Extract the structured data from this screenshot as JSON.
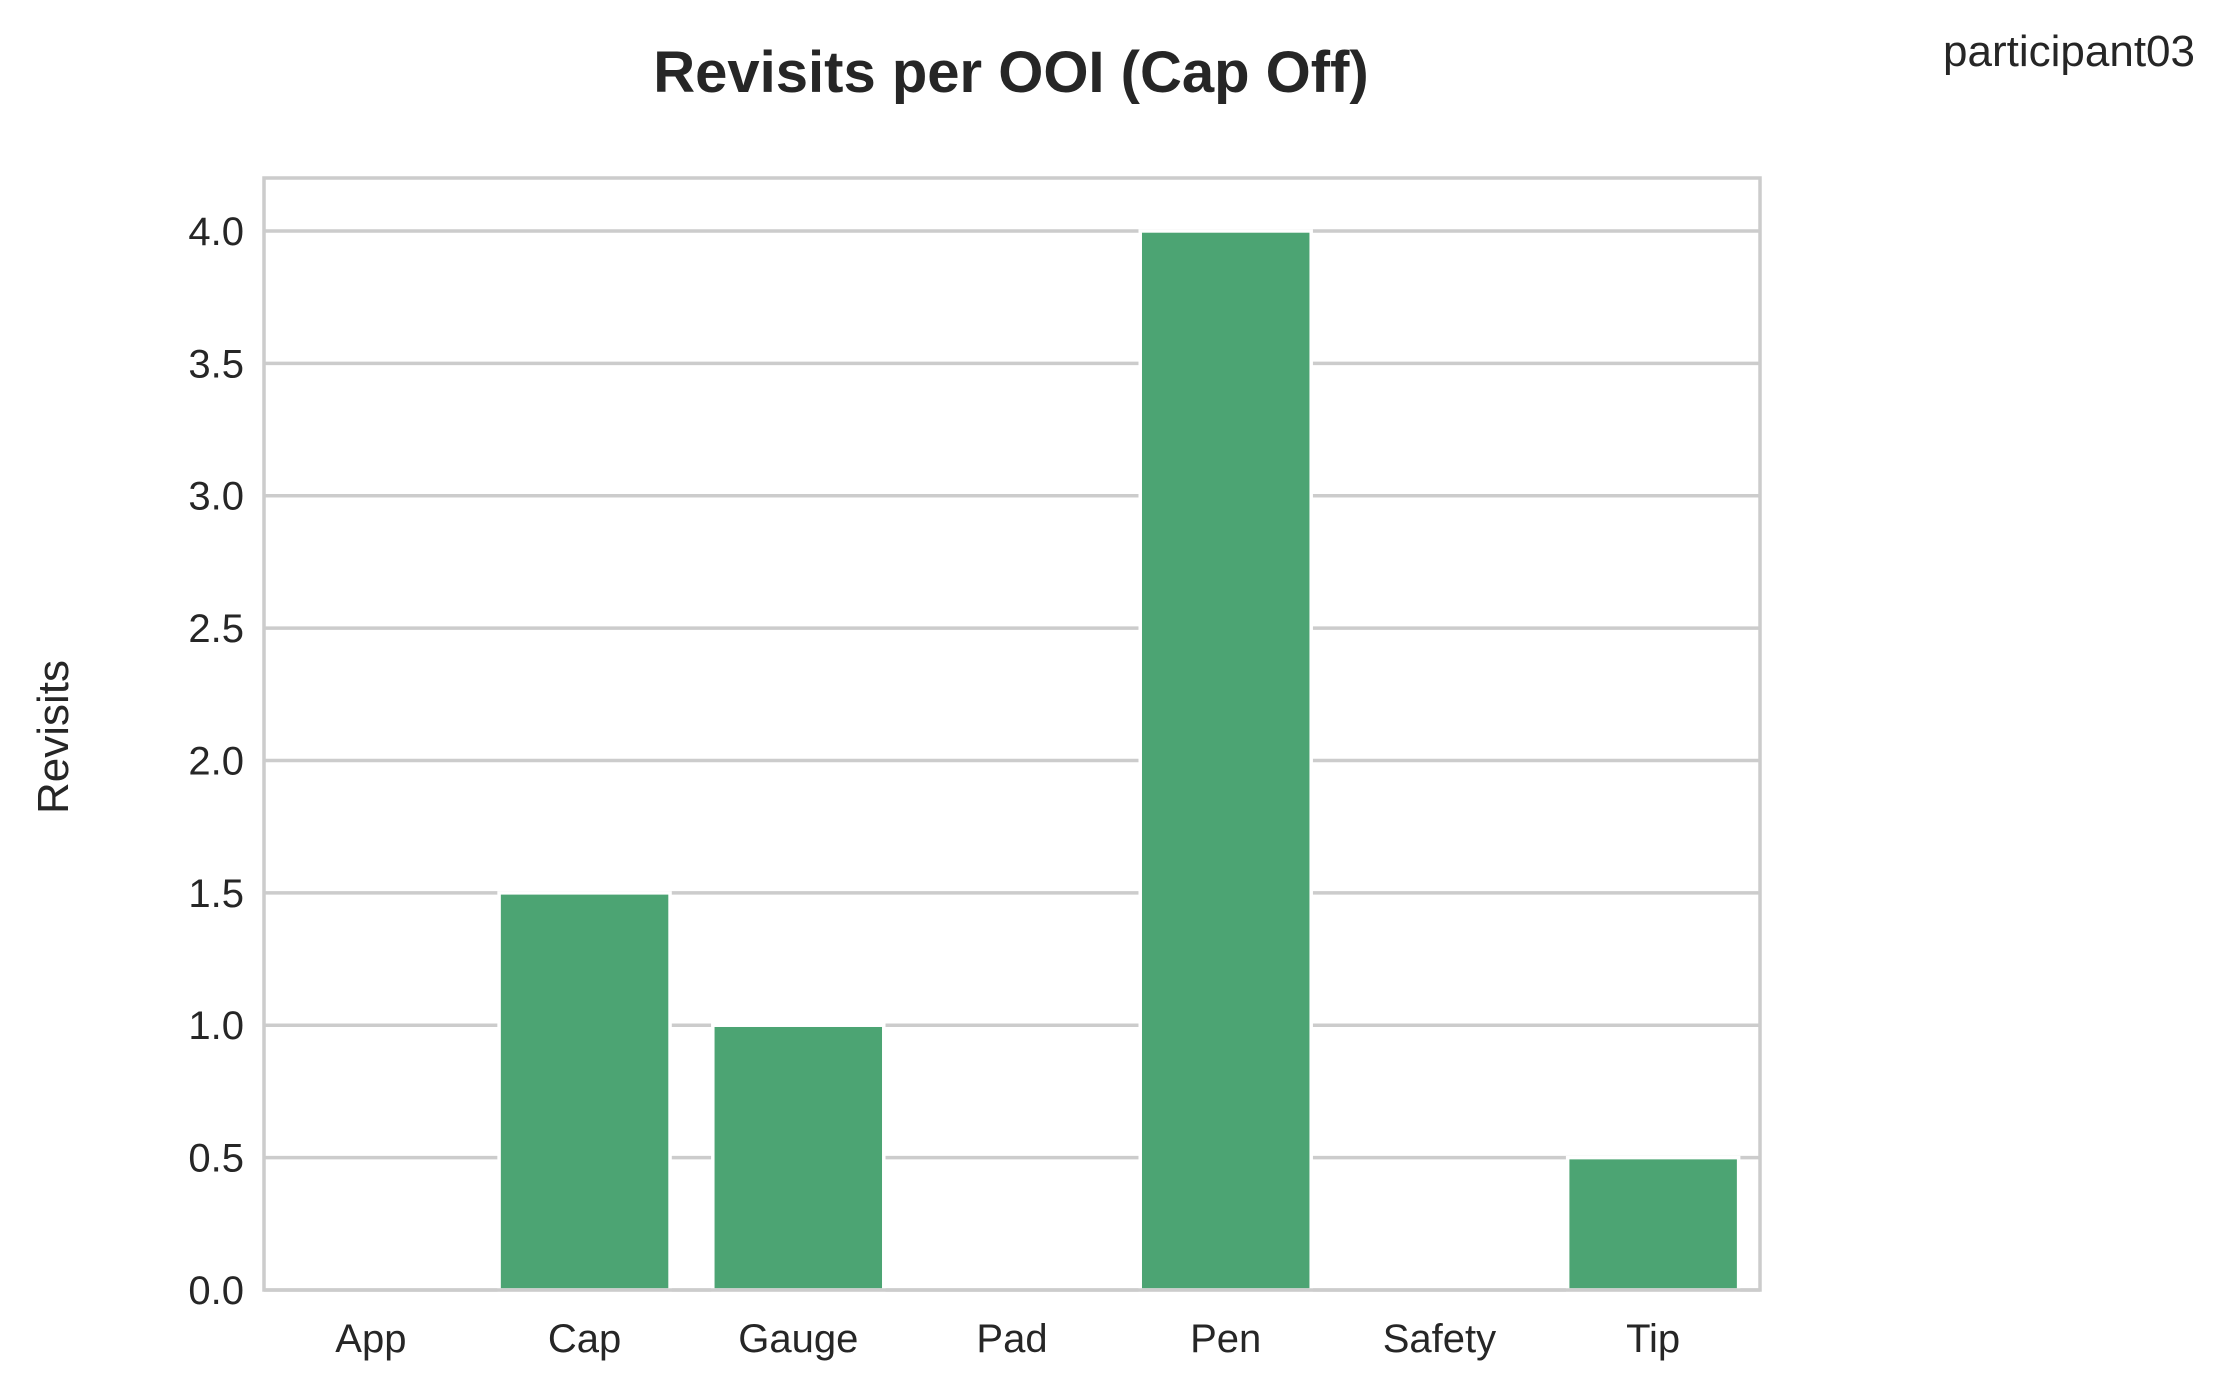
{
  "participant": "participant03",
  "chart_data": {
    "type": "bar",
    "title": "Revisits per OOI (Cap Off)",
    "xlabel": "",
    "ylabel": "Revisits",
    "categories": [
      "App",
      "Cap",
      "Gauge",
      "Pad",
      "Pen",
      "Safety",
      "Tip"
    ],
    "values": [
      0,
      1.5,
      1.0,
      0,
      4.0,
      0,
      0.5
    ],
    "ylim": [
      0,
      4.2
    ],
    "yticks": [
      0.0,
      0.5,
      1.0,
      1.5,
      2.0,
      2.5,
      3.0,
      3.5,
      4.0
    ],
    "ytick_labels": [
      "0.0",
      "0.5",
      "1.0",
      "1.5",
      "2.0",
      "2.5",
      "3.0",
      "3.5",
      "4.0"
    ],
    "grid": true,
    "bar_color": "#4ca473",
    "grid_color": "#cccccc",
    "text_color": "#262626"
  }
}
